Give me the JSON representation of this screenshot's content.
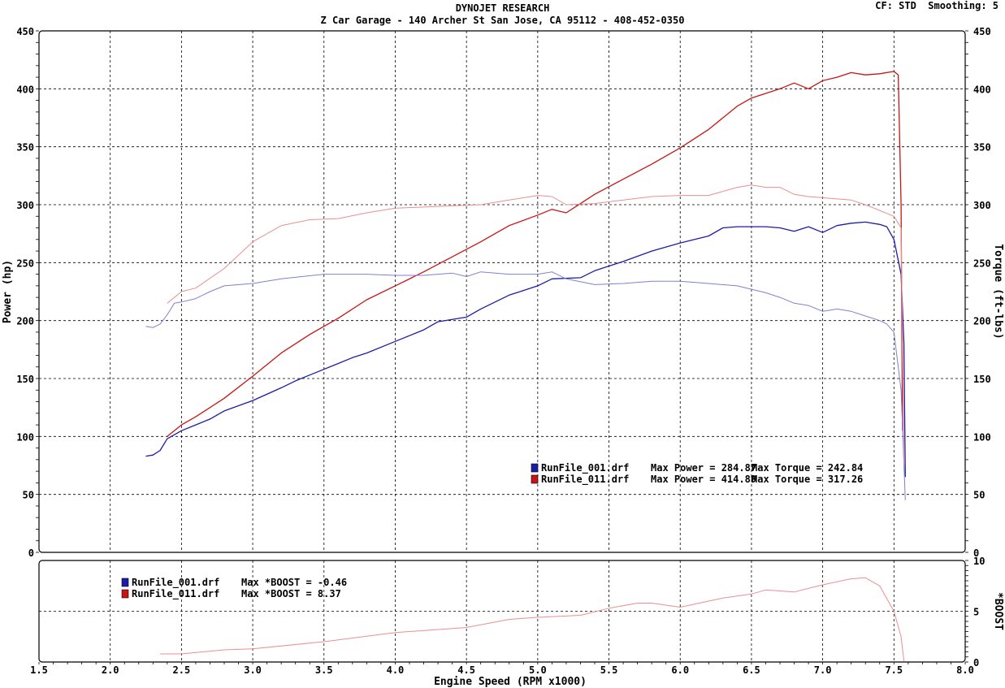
{
  "header": {
    "title": "DYNOJET RESEARCH",
    "subtitle": "Z Car Garage - 140 Archer St San Jose, CA 95112 - 408-452-0350",
    "cf": "CF: STD",
    "smoothing": "Smoothing: 5"
  },
  "chart_data": [
    {
      "type": "line",
      "xlabel": "Engine Speed (RPM x1000)",
      "ylabel": "Power (hp)",
      "ylabel_right": "Torque (ft-lbs)",
      "xlim": [
        1.5,
        8.0
      ],
      "ylim": [
        0,
        450
      ],
      "ylim_right": [
        0,
        450
      ],
      "x_ticks": [
        "1.5",
        "2.0",
        "2.5",
        "3.0",
        "3.5",
        "4.0",
        "4.5",
        "5.0",
        "5.5",
        "6.0",
        "6.5",
        "7.0",
        "7.5",
        "8.0"
      ],
      "y_ticks": [
        "0",
        "50",
        "100",
        "150",
        "200",
        "250",
        "300",
        "350",
        "400",
        "450"
      ],
      "y_ticks_right": [
        "0",
        "50",
        "100",
        "150",
        "200",
        "250",
        "300",
        "350",
        "400",
        "450"
      ],
      "grid": true,
      "colors": {
        "run001": "#1c1ca8",
        "run001_light": "#8080d0",
        "run011": "#c81414",
        "run011_light": "#e89090"
      },
      "legend": [
        {
          "file": "RunFile_001.drf",
          "power": "Max Power = 284.87",
          "torque": "Max Torque = 242.84",
          "color": "#1c1ca8"
        },
        {
          "file": "RunFile_011.drf",
          "power": "Max Power = 414.89",
          "torque": "Max Torque = 317.26",
          "color": "#c81414"
        }
      ],
      "series": [
        {
          "kind": "power",
          "color": "#1c1ca8",
          "x": [
            2.25,
            2.3,
            2.35,
            2.4,
            2.5,
            2.6,
            2.7,
            2.8,
            3.0,
            3.2,
            3.3,
            3.4,
            3.6,
            3.7,
            3.8,
            4.0,
            4.2,
            4.3,
            4.5,
            4.6,
            4.8,
            5.0,
            5.1,
            5.3,
            5.4,
            5.6,
            5.8,
            6.0,
            6.2,
            6.3,
            6.4,
            6.6,
            6.7,
            6.8,
            6.9,
            7.0,
            7.1,
            7.2,
            7.3,
            7.4,
            7.45,
            7.5,
            7.55,
            7.57,
            7.58
          ],
          "y": [
            83,
            84,
            88,
            98,
            105,
            110,
            115,
            122,
            131,
            142,
            148,
            153,
            163,
            168,
            172,
            182,
            192,
            199,
            203,
            210,
            222,
            230,
            236,
            237,
            243,
            251,
            260,
            267,
            273,
            280,
            281,
            281,
            280,
            277,
            281,
            276,
            282,
            284,
            285,
            283,
            281,
            270,
            240,
            180,
            65
          ]
        },
        {
          "kind": "power",
          "color": "#c81414",
          "x": [
            2.4,
            2.5,
            2.6,
            2.8,
            3.0,
            3.2,
            3.4,
            3.6,
            3.8,
            4.0,
            4.2,
            4.4,
            4.6,
            4.8,
            5.0,
            5.1,
            5.2,
            5.4,
            5.6,
            5.8,
            5.9,
            6.0,
            6.2,
            6.4,
            6.5,
            6.6,
            6.7,
            6.8,
            6.9,
            7.0,
            7.1,
            7.2,
            7.3,
            7.4,
            7.5,
            7.53,
            7.55,
            7.56
          ],
          "y": [
            100,
            110,
            117,
            133,
            152,
            172,
            188,
            202,
            218,
            230,
            242,
            255,
            268,
            282,
            291,
            296,
            293,
            309,
            322,
            335,
            342,
            349,
            365,
            385,
            392,
            396,
            400,
            405,
            400,
            407,
            410,
            414,
            412,
            413,
            415,
            412,
            300,
            105
          ]
        },
        {
          "kind": "torque",
          "color": "#8080d0",
          "x": [
            2.25,
            2.3,
            2.35,
            2.4,
            2.45,
            2.5,
            2.6,
            2.7,
            2.8,
            3.0,
            3.2,
            3.5,
            3.8,
            4.0,
            4.2,
            4.4,
            4.5,
            4.6,
            4.8,
            5.0,
            5.1,
            5.2,
            5.4,
            5.6,
            5.8,
            6.0,
            6.2,
            6.4,
            6.6,
            6.7,
            6.8,
            6.9,
            7.0,
            7.1,
            7.2,
            7.3,
            7.4,
            7.45,
            7.5,
            7.55,
            7.58
          ],
          "y": [
            195,
            194,
            197,
            205,
            215,
            216,
            219,
            225,
            230,
            232,
            236,
            240,
            240,
            239,
            239,
            241,
            238,
            242,
            240,
            240,
            242,
            236,
            231,
            232,
            234,
            234,
            232,
            230,
            224,
            220,
            215,
            213,
            208,
            210,
            208,
            204,
            200,
            197,
            190,
            140,
            45
          ]
        },
        {
          "kind": "torque",
          "color": "#e89090",
          "x": [
            2.4,
            2.5,
            2.6,
            2.8,
            3.0,
            3.2,
            3.4,
            3.6,
            3.8,
            4.0,
            4.2,
            4.4,
            4.6,
            4.8,
            5.0,
            5.1,
            5.2,
            5.4,
            5.6,
            5.8,
            6.0,
            6.2,
            6.4,
            6.5,
            6.6,
            6.7,
            6.8,
            6.9,
            7.0,
            7.1,
            7.2,
            7.3,
            7.4,
            7.5,
            7.55,
            7.57
          ],
          "y": [
            215,
            225,
            228,
            245,
            268,
            282,
            287,
            288,
            293,
            297,
            298,
            299,
            300,
            304,
            308,
            307,
            300,
            301,
            304,
            307,
            308,
            308,
            315,
            317,
            315,
            315,
            309,
            307,
            306,
            305,
            304,
            300,
            295,
            290,
            280,
            75
          ]
        }
      ]
    },
    {
      "type": "line",
      "ylabel_right": "*BOOST",
      "xlim": [
        1.5,
        8.0
      ],
      "ylim": [
        0,
        10
      ],
      "y_ticks_right": [
        "0",
        "5",
        "10"
      ],
      "grid": true,
      "legend": [
        {
          "file": "RunFile_001.drf",
          "text": "Max *BOOST = -0.46",
          "color": "#1c1ca8"
        },
        {
          "file": "RunFile_011.drf",
          "text": "Max *BOOST = 8.37",
          "color": "#c81414"
        }
      ],
      "series": [
        {
          "color": "#e89090",
          "x": [
            2.35,
            2.5,
            2.8,
            3.0,
            3.5,
            4.0,
            4.5,
            4.8,
            5.0,
            5.3,
            5.5,
            5.7,
            5.8,
            6.0,
            6.3,
            6.5,
            6.6,
            6.8,
            7.0,
            7.2,
            7.3,
            7.4,
            7.5,
            7.55,
            7.57
          ],
          "y": [
            0.8,
            0.8,
            1.2,
            1.3,
            2.0,
            2.9,
            3.4,
            4.2,
            4.4,
            4.6,
            5.3,
            5.8,
            5.8,
            5.4,
            6.3,
            6.7,
            7.1,
            6.9,
            7.6,
            8.2,
            8.3,
            7.5,
            5.0,
            2.5,
            0.1
          ]
        }
      ]
    }
  ]
}
